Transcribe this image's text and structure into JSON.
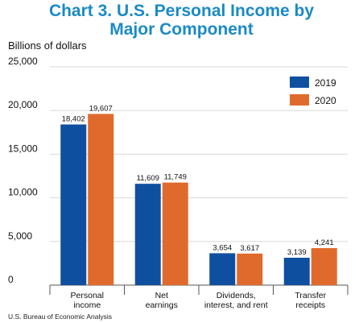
{
  "title_line1": "Chart 3. U.S. Personal Income by",
  "title_line2": "Major Component",
  "source": "U.S. Bureau of Economic Analysis",
  "chart_data": {
    "type": "bar",
    "title": "Chart 3. U.S. Personal Income by Major Component",
    "ylabel": "Billions of dollars",
    "ylim": [
      0,
      25000
    ],
    "yticks": [
      0,
      5000,
      10000,
      15000,
      20000,
      25000
    ],
    "ytick_labels": [
      "0",
      "5,000",
      "10,000",
      "15,000",
      "20,000",
      "25,000"
    ],
    "grid": true,
    "legend_position": "top-right",
    "categories": [
      [
        "Personal",
        "income"
      ],
      [
        "Net",
        "earnings"
      ],
      [
        "Dividends,",
        "interest, and rent"
      ],
      [
        "Transfer",
        "receipts"
      ]
    ],
    "series": [
      {
        "name": "2019",
        "color": "#0f4fa0",
        "values": [
          18402,
          11609,
          3654,
          3139
        ],
        "labels": [
          "18,402",
          "11,609",
          "3,654",
          "3,139"
        ]
      },
      {
        "name": "2020",
        "color": "#e06a2c",
        "values": [
          19607,
          11749,
          3617,
          4241
        ],
        "labels": [
          "19,607",
          "11,749",
          "3,617",
          "4,241"
        ]
      }
    ]
  }
}
